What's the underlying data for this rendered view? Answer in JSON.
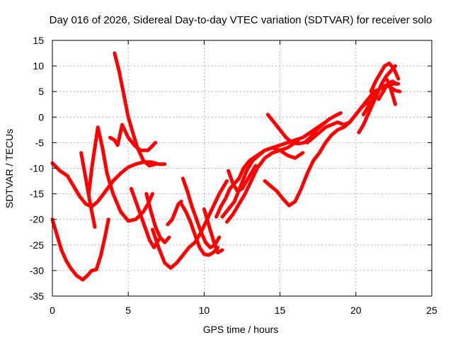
{
  "chart_data": {
    "type": "line",
    "title": "Day 016 of 2026, Sidereal Day-to-day VTEC variation (SDTVAR) for receiver solo",
    "xlabel": "GPS time / hours",
    "ylabel": "SDTVAR / TECUs",
    "xlim": [
      0,
      25
    ],
    "ylim": [
      -35,
      15
    ],
    "xticks": [
      0,
      5,
      10,
      15,
      20,
      25
    ],
    "yticks": [
      -35,
      -30,
      -25,
      -20,
      -15,
      -10,
      -5,
      0,
      5,
      10,
      15
    ],
    "grid": true,
    "color": "#ff0000",
    "series": [
      {
        "x": [
          0.0,
          0.5,
          1.0,
          1.4,
          1.8,
          2.2,
          2.6,
          3.0,
          3.5,
          4.0,
          4.5,
          5.0,
          5.5,
          6.0,
          6.5,
          7.0,
          7.4
        ],
        "y": [
          -9.0,
          -10.5,
          -11.5,
          -13.5,
          -15.5,
          -17.0,
          -17.5,
          -16.5,
          -14.5,
          -12.5,
          -11.0,
          -9.8,
          -9.2,
          -8.8,
          -8.8,
          -9.2,
          -9.2
        ]
      },
      {
        "x": [
          0.0,
          0.3,
          0.6,
          0.9,
          1.2,
          1.6,
          2.0,
          2.3,
          2.6,
          2.9,
          3.2,
          3.5,
          3.7
        ],
        "y": [
          -20.0,
          -23.0,
          -26.0,
          -28.0,
          -29.5,
          -31.0,
          -31.8,
          -31.0,
          -30.0,
          -29.8,
          -27.0,
          -23.0,
          -20.0
        ]
      },
      {
        "x": [
          1.9,
          2.2,
          2.5,
          2.8
        ],
        "y": [
          -7.0,
          -12.0,
          -17.0,
          -21.5
        ]
      },
      {
        "x": [
          2.4,
          2.6,
          2.8,
          3.0,
          3.3,
          3.6,
          4.0,
          4.5,
          5.0,
          5.5,
          6.0,
          6.3,
          6.6
        ],
        "y": [
          -15.0,
          -10.0,
          -6.0,
          -2.0,
          -6.0,
          -11.0,
          -15.0,
          -18.5,
          -20.3,
          -20.0,
          -18.5,
          -17.0,
          -15.0
        ]
      },
      {
        "x": [
          3.8,
          4.1,
          4.3,
          4.6,
          5.0,
          5.4,
          5.8,
          6.3,
          6.8
        ],
        "y": [
          -4.0,
          -4.5,
          -5.5,
          -1.5,
          -4.0,
          -5.5,
          -6.5,
          -6.5,
          -5.0
        ]
      },
      {
        "x": [
          4.1,
          4.4,
          4.7,
          5.0,
          5.3,
          5.6,
          6.0,
          6.4,
          6.8
        ],
        "y": [
          12.5,
          9.0,
          4.5,
          0.0,
          -3.0,
          -6.0,
          -8.5,
          -9.5,
          -9.2
        ]
      },
      {
        "x": [
          5.2,
          5.5,
          5.8,
          6.1,
          6.4,
          6.7,
          7.0
        ],
        "y": [
          -14.0,
          -16.5,
          -19.0,
          -21.5,
          -24.0,
          -25.5,
          -24.0
        ]
      },
      {
        "x": [
          6.2,
          6.5,
          6.8,
          7.1,
          7.4,
          7.7
        ],
        "y": [
          -15.0,
          -18.5,
          -21.5,
          -23.5,
          -24.5,
          -23.5
        ]
      },
      {
        "x": [
          7.6,
          7.9,
          8.1,
          8.3,
          8.5
        ],
        "y": [
          -21.0,
          -20.0,
          -18.5,
          -17.0,
          -16.5
        ]
      },
      {
        "x": [
          6.6,
          7.0,
          7.4,
          7.8,
          8.2,
          8.6,
          9.0,
          9.4,
          9.8,
          10.2,
          10.6,
          11.0,
          11.5
        ],
        "y": [
          -22.0,
          -25.5,
          -28.5,
          -29.5,
          -28.5,
          -27.0,
          -25.5,
          -24.5,
          -22.5,
          -20.0,
          -17.5,
          -15.0,
          -12.5
        ]
      },
      {
        "x": [
          8.5,
          8.8,
          9.1,
          9.4,
          9.7,
          10.0,
          10.3,
          10.6,
          10.9
        ],
        "y": [
          -17.0,
          -18.5,
          -20.5,
          -23.0,
          -25.5,
          -26.8,
          -27.0,
          -26.5,
          -25.5
        ]
      },
      {
        "x": [
          8.6,
          8.9,
          9.2,
          9.5,
          9.8,
          10.1,
          10.4,
          10.7,
          11.0
        ],
        "y": [
          -12.0,
          -14.5,
          -17.5,
          -20.0,
          -22.5,
          -24.5,
          -25.5,
          -25.0,
          -23.5
        ]
      },
      {
        "x": [
          10.0,
          10.3,
          10.6,
          10.9,
          11.2
        ],
        "y": [
          -18.0,
          -21.0,
          -24.0,
          -26.5,
          -26.0
        ]
      },
      {
        "x": [
          10.8,
          11.1,
          11.4,
          11.7,
          12.0,
          12.3,
          12.6,
          13.0,
          13.5,
          14.0,
          14.5,
          15.0,
          15.5,
          16.0,
          16.5,
          17.0,
          17.5,
          18.0
        ],
        "y": [
          -19.5,
          -17.5,
          -16.0,
          -14.0,
          -13.0,
          -12.0,
          -10.0,
          -8.5,
          -7.5,
          -6.5,
          -6.0,
          -5.5,
          -5.0,
          -4.5,
          -4.0,
          -3.0,
          -2.0,
          -1.0
        ]
      },
      {
        "x": [
          11.2,
          11.6,
          12.0,
          12.4,
          12.8,
          13.2,
          13.6,
          14.0,
          14.5,
          15.0,
          15.5,
          16.0,
          16.5
        ],
        "y": [
          -19.5,
          -18.0,
          -16.5,
          -13.5,
          -10.5,
          -8.5,
          -7.5,
          -6.5,
          -6.0,
          -6.5,
          -7.5,
          -8.0,
          -7.0
        ]
      },
      {
        "x": [
          11.5,
          11.9,
          12.3,
          12.7,
          13.1,
          13.5,
          14.0,
          14.5,
          15.0,
          15.5,
          16.0
        ],
        "y": [
          -20.5,
          -19.0,
          -17.0,
          -15.0,
          -12.5,
          -10.0,
          -8.0,
          -7.0,
          -6.5,
          -6.0,
          -5.0
        ]
      },
      {
        "x": [
          11.6,
          11.9,
          12.2,
          12.5,
          12.8,
          13.1,
          13.4
        ],
        "y": [
          -10.5,
          -13.0,
          -14.5,
          -14.0,
          -12.5,
          -11.0,
          -9.5
        ]
      },
      {
        "x": [
          14.2,
          14.6,
          15.0,
          15.4,
          15.8,
          16.2
        ],
        "y": [
          0.5,
          -1.0,
          -2.5,
          -4.0,
          -5.0,
          -4.5
        ]
      },
      {
        "x": [
          14.0,
          14.4,
          14.8,
          15.2,
          15.6,
          16.0,
          16.4,
          16.8,
          17.2,
          17.6,
          18.0,
          18.4,
          18.8
        ],
        "y": [
          -12.5,
          -13.5,
          -14.5,
          -16.0,
          -17.3,
          -16.5,
          -14.0,
          -11.0,
          -8.5,
          -7.0,
          -5.0,
          -3.5,
          -2.5
        ]
      },
      {
        "x": [
          15.8,
          16.2,
          16.6,
          17.0,
          17.4,
          17.8,
          18.2,
          18.6,
          19.0
        ],
        "y": [
          -5.0,
          -5.2,
          -5.0,
          -4.0,
          -2.5,
          -1.5,
          -0.5,
          0.2,
          0.8
        ]
      },
      {
        "x": [
          16.8,
          17.2,
          17.6,
          18.0,
          18.4,
          18.8,
          19.2,
          19.6,
          20.0,
          20.4,
          20.8
        ],
        "y": [
          -5.0,
          -4.0,
          -3.0,
          -2.0,
          -1.5,
          -1.0,
          -1.5,
          -1.0,
          0.5,
          2.0,
          3.0
        ]
      },
      {
        "x": [
          18.8,
          19.2,
          19.6,
          20.0,
          20.4,
          20.8,
          21.2,
          21.6,
          22.0,
          22.4,
          22.8
        ],
        "y": [
          -2.5,
          -2.0,
          -1.0,
          0.5,
          2.0,
          3.5,
          5.0,
          5.5,
          6.0,
          6.5,
          6.5
        ]
      },
      {
        "x": [
          20.2,
          20.5,
          20.8,
          21.1,
          21.4,
          21.7,
          22.0,
          22.3,
          22.6
        ],
        "y": [
          -3.0,
          -1.5,
          0.5,
          2.5,
          4.5,
          6.5,
          8.0,
          9.0,
          10.0
        ]
      },
      {
        "x": [
          20.5,
          20.8,
          21.1,
          21.4,
          21.7,
          22.0,
          22.3,
          22.6,
          22.9
        ],
        "y": [
          0.5,
          2.0,
          3.5,
          5.0,
          6.0,
          6.2,
          5.8,
          5.2,
          5.0
        ]
      },
      {
        "x": [
          21.0,
          21.3,
          21.6,
          21.9,
          22.2,
          22.5,
          22.8
        ],
        "y": [
          5.0,
          7.0,
          8.5,
          10.0,
          10.5,
          9.5,
          7.5
        ]
      },
      {
        "x": [
          21.5,
          21.8,
          22.1,
          22.4,
          22.7
        ],
        "y": [
          3.5,
          5.0,
          6.5,
          7.0,
          6.5
        ]
      },
      {
        "x": [
          22.0,
          22.2,
          22.4,
          22.6
        ],
        "y": [
          7.5,
          6.5,
          4.5,
          2.5
        ]
      }
    ]
  }
}
